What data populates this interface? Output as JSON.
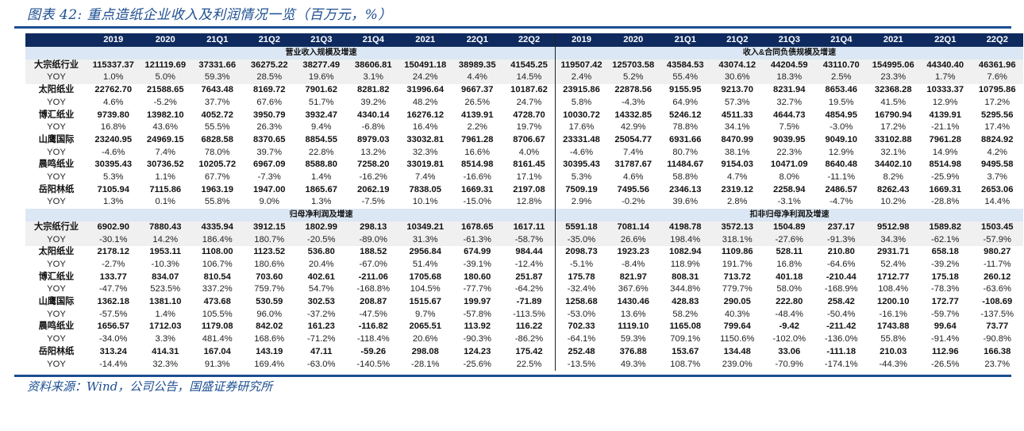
{
  "title": "图表 42:  重点造纸企业收入及利润情况一览（百万元，%）",
  "source": "资料来源：Wind，公司公告，国盛证券研究所",
  "columns": [
    "2019",
    "2020",
    "21Q1",
    "21Q2",
    "21Q3",
    "21Q4",
    "2021",
    "22Q1",
    "22Q2"
  ],
  "yoy_label": "YOY",
  "sections": {
    "revenue": "营业收入规模及增速",
    "revenue_contract": "收入&合同负债规模及增速",
    "net_profit": "归母净利润及增速",
    "adj_net_profit": "扣非归母净利润及增速"
  },
  "top_block": [
    {
      "name": "大宗纸行业",
      "left": [
        "115337.37",
        "121119.69",
        "37331.66",
        "36275.22",
        "38277.49",
        "38606.81",
        "150491.18",
        "38989.35",
        "41545.25"
      ],
      "left_yoy": [
        "1.0%",
        "5.0%",
        "59.3%",
        "28.5%",
        "19.6%",
        "3.1%",
        "24.2%",
        "4.4%",
        "14.5%"
      ],
      "right": [
        "119507.42",
        "125703.58",
        "43584.53",
        "43074.12",
        "44204.59",
        "43110.70",
        "154995.06",
        "44340.40",
        "46361.96"
      ],
      "right_yoy": [
        "2.4%",
        "5.2%",
        "55.4%",
        "30.6%",
        "18.3%",
        "2.5%",
        "23.3%",
        "1.7%",
        "7.6%"
      ]
    },
    {
      "name": "太阳纸业",
      "left": [
        "22762.70",
        "21588.65",
        "7643.48",
        "8169.72",
        "7901.62",
        "8281.82",
        "31996.64",
        "9667.37",
        "10187.62"
      ],
      "left_yoy": [
        "4.6%",
        "-5.2%",
        "37.7%",
        "67.6%",
        "51.7%",
        "39.2%",
        "48.2%",
        "26.5%",
        "24.7%"
      ],
      "right": [
        "23915.86",
        "22878.56",
        "9155.95",
        "9213.70",
        "8231.94",
        "8653.46",
        "32368.28",
        "10333.37",
        "10795.86"
      ],
      "right_yoy": [
        "5.8%",
        "-4.3%",
        "64.9%",
        "57.3%",
        "32.7%",
        "19.5%",
        "41.5%",
        "12.9%",
        "17.2%"
      ]
    },
    {
      "name": "博汇纸业",
      "left": [
        "9739.80",
        "13982.10",
        "4052.72",
        "3950.79",
        "3932.47",
        "4340.14",
        "16276.12",
        "4139.91",
        "4728.70"
      ],
      "left_yoy": [
        "16.8%",
        "43.6%",
        "55.5%",
        "26.3%",
        "9.4%",
        "-6.8%",
        "16.4%",
        "2.2%",
        "19.7%"
      ],
      "right": [
        "10030.72",
        "14332.85",
        "5246.12",
        "4511.33",
        "4644.73",
        "4854.95",
        "16790.94",
        "4139.91",
        "5295.56"
      ],
      "right_yoy": [
        "17.6%",
        "42.9%",
        "78.8%",
        "34.1%",
        "7.5%",
        "-3.0%",
        "17.2%",
        "-21.1%",
        "17.4%"
      ]
    },
    {
      "name": "山鹰国际",
      "left": [
        "23240.95",
        "24969.15",
        "6828.58",
        "8370.65",
        "8854.55",
        "8979.03",
        "33032.81",
        "7961.28",
        "8706.67"
      ],
      "left_yoy": [
        "-4.6%",
        "7.4%",
        "78.0%",
        "39.7%",
        "22.8%",
        "13.2%",
        "32.3%",
        "16.6%",
        "4.0%"
      ],
      "right": [
        "23331.48",
        "25054.77",
        "6931.66",
        "8470.99",
        "9039.95",
        "9049.10",
        "33102.88",
        "7961.28",
        "8824.92"
      ],
      "right_yoy": [
        "-4.6%",
        "7.4%",
        "80.7%",
        "38.1%",
        "22.3%",
        "12.9%",
        "32.1%",
        "14.9%",
        "4.2%"
      ]
    },
    {
      "name": "晨鸣纸业",
      "left": [
        "30395.43",
        "30736.52",
        "10205.72",
        "6967.09",
        "8588.80",
        "7258.20",
        "33019.81",
        "8514.98",
        "8161.45"
      ],
      "left_yoy": [
        "5.3%",
        "1.1%",
        "67.7%",
        "-7.3%",
        "1.4%",
        "-16.2%",
        "7.4%",
        "-16.6%",
        "17.1%"
      ],
      "right": [
        "30395.43",
        "31787.67",
        "11484.67",
        "9154.03",
        "10471.09",
        "8640.48",
        "34402.10",
        "8514.98",
        "9495.58"
      ],
      "right_yoy": [
        "5.3%",
        "4.6%",
        "58.8%",
        "4.7%",
        "8.0%",
        "-11.1%",
        "8.2%",
        "-25.9%",
        "3.7%"
      ]
    },
    {
      "name": "岳阳林纸",
      "left": [
        "7105.94",
        "7115.86",
        "1963.19",
        "1947.00",
        "1865.67",
        "2062.19",
        "7838.05",
        "1669.31",
        "2197.08"
      ],
      "left_yoy": [
        "1.3%",
        "0.1%",
        "55.8%",
        "9.0%",
        "1.3%",
        "-7.5%",
        "10.1%",
        "-15.0%",
        "12.8%"
      ],
      "right": [
        "7509.19",
        "7495.56",
        "2346.13",
        "2319.12",
        "2258.94",
        "2486.57",
        "8262.43",
        "1669.31",
        "2653.06"
      ],
      "right_yoy": [
        "2.9%",
        "-0.2%",
        "39.6%",
        "2.8%",
        "-3.1%",
        "-4.7%",
        "10.2%",
        "-28.8%",
        "14.4%"
      ]
    }
  ],
  "bottom_block": [
    {
      "name": "大宗纸行业",
      "left": [
        "6902.90",
        "7880.43",
        "4335.94",
        "3912.15",
        "1802.99",
        "298.13",
        "10349.21",
        "1678.65",
        "1617.11"
      ],
      "left_yoy": [
        "-30.1%",
        "14.2%",
        "186.4%",
        "180.7%",
        "-20.5%",
        "-89.0%",
        "31.3%",
        "-61.3%",
        "-58.7%"
      ],
      "right": [
        "5591.18",
        "7081.14",
        "4198.78",
        "3572.13",
        "1504.89",
        "237.17",
        "9512.98",
        "1589.82",
        "1503.45"
      ],
      "right_yoy": [
        "-35.0%",
        "26.6%",
        "198.4%",
        "318.1%",
        "-27.6%",
        "-91.3%",
        "34.3%",
        "-62.1%",
        "-57.9%"
      ]
    },
    {
      "name": "太阳纸业",
      "left": [
        "2178.12",
        "1953.11",
        "1108.00",
        "1123.52",
        "536.80",
        "188.52",
        "2956.84",
        "674.99",
        "984.44"
      ],
      "left_yoy": [
        "-2.7%",
        "-10.3%",
        "106.7%",
        "180.6%",
        "20.4%",
        "-67.0%",
        "51.4%",
        "-39.1%",
        "-12.4%"
      ],
      "right": [
        "2098.73",
        "1923.23",
        "1082.94",
        "1109.86",
        "528.11",
        "210.80",
        "2931.71",
        "658.18",
        "980.27"
      ],
      "right_yoy": [
        "-5.1%",
        "-8.4%",
        "118.9%",
        "191.7%",
        "16.8%",
        "-64.6%",
        "52.4%",
        "-39.2%",
        "-11.7%"
      ]
    },
    {
      "name": "博汇纸业",
      "left": [
        "133.77",
        "834.07",
        "810.54",
        "703.60",
        "402.61",
        "-211.06",
        "1705.68",
        "180.60",
        "251.87"
      ],
      "left_yoy": [
        "-47.7%",
        "523.5%",
        "337.2%",
        "759.7%",
        "54.7%",
        "-168.8%",
        "104.5%",
        "-77.7%",
        "-64.2%"
      ],
      "right": [
        "175.78",
        "821.97",
        "808.31",
        "713.72",
        "401.18",
        "-210.44",
        "1712.77",
        "175.18",
        "260.12"
      ],
      "right_yoy": [
        "-32.4%",
        "367.6%",
        "344.8%",
        "779.7%",
        "58.0%",
        "-168.9%",
        "108.4%",
        "-78.3%",
        "-63.6%"
      ]
    },
    {
      "name": "山鹰国际",
      "left": [
        "1362.18",
        "1381.10",
        "473.68",
        "530.59",
        "302.53",
        "208.87",
        "1515.67",
        "199.97",
        "-71.89"
      ],
      "left_yoy": [
        "-57.5%",
        "1.4%",
        "105.5%",
        "96.0%",
        "-37.2%",
        "-47.5%",
        "9.7%",
        "-57.8%",
        "-113.5%"
      ],
      "right": [
        "1258.68",
        "1430.46",
        "428.83",
        "290.05",
        "222.80",
        "258.42",
        "1200.10",
        "172.77",
        "-108.69"
      ],
      "right_yoy": [
        "-53.0%",
        "13.6%",
        "58.2%",
        "40.3%",
        "-48.4%",
        "-50.4%",
        "-16.1%",
        "-59.7%",
        "-137.5%"
      ]
    },
    {
      "name": "晨鸣纸业",
      "left": [
        "1656.57",
        "1712.03",
        "1179.08",
        "842.02",
        "161.23",
        "-116.82",
        "2065.51",
        "113.92",
        "116.22"
      ],
      "left_yoy": [
        "-34.0%",
        "3.3%",
        "481.4%",
        "168.6%",
        "-71.2%",
        "-118.4%",
        "20.6%",
        "-90.3%",
        "-86.2%"
      ],
      "right": [
        "702.33",
        "1119.10",
        "1165.08",
        "799.64",
        "-9.42",
        "-211.42",
        "1743.88",
        "99.64",
        "73.77"
      ],
      "right_yoy": [
        "-64.1%",
        "59.3%",
        "709.1%",
        "1150.6%",
        "-102.0%",
        "-136.0%",
        "55.8%",
        "-91.4%",
        "-90.8%"
      ]
    },
    {
      "name": "岳阳林纸",
      "left": [
        "313.24",
        "414.31",
        "167.04",
        "143.19",
        "47.11",
        "-59.26",
        "298.08",
        "124.23",
        "175.42"
      ],
      "left_yoy": [
        "-14.4%",
        "32.3%",
        "91.3%",
        "169.4%",
        "-63.0%",
        "-140.5%",
        "-28.1%",
        "-25.6%",
        "22.5%"
      ],
      "right": [
        "252.48",
        "376.88",
        "153.67",
        "134.48",
        "33.06",
        "-111.18",
        "210.03",
        "112.96",
        "166.38"
      ],
      "right_yoy": [
        "-13.5%",
        "49.3%",
        "108.7%",
        "239.0%",
        "-70.9%",
        "-174.1%",
        "-44.3%",
        "-26.5%",
        "23.7%"
      ]
    }
  ]
}
